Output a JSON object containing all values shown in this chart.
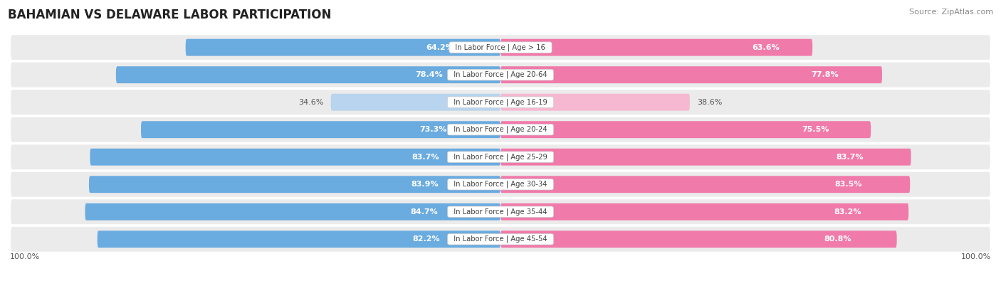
{
  "title": "BAHAMIAN VS DELAWARE LABOR PARTICIPATION",
  "source": "Source: ZipAtlas.com",
  "categories": [
    "In Labor Force | Age > 16",
    "In Labor Force | Age 20-64",
    "In Labor Force | Age 16-19",
    "In Labor Force | Age 20-24",
    "In Labor Force | Age 25-29",
    "In Labor Force | Age 30-34",
    "In Labor Force | Age 35-44",
    "In Labor Force | Age 45-54"
  ],
  "bahamian": [
    64.2,
    78.4,
    34.6,
    73.3,
    83.7,
    83.9,
    84.7,
    82.2
  ],
  "delaware": [
    63.6,
    77.8,
    38.6,
    75.5,
    83.7,
    83.5,
    83.2,
    80.8
  ],
  "light_rows": [
    2
  ],
  "bahamian_color": "#6aabe0",
  "bahamian_color_light": "#b8d4ee",
  "delaware_color": "#f07aaa",
  "delaware_color_light": "#f5b8d0",
  "row_bg_color": "#ebebeb",
  "max_value": 100.0,
  "bar_height": 0.62,
  "figsize": [
    14.06,
    3.95
  ],
  "dpi": 100,
  "legend_labels": [
    "Bahamian",
    "Delaware"
  ]
}
